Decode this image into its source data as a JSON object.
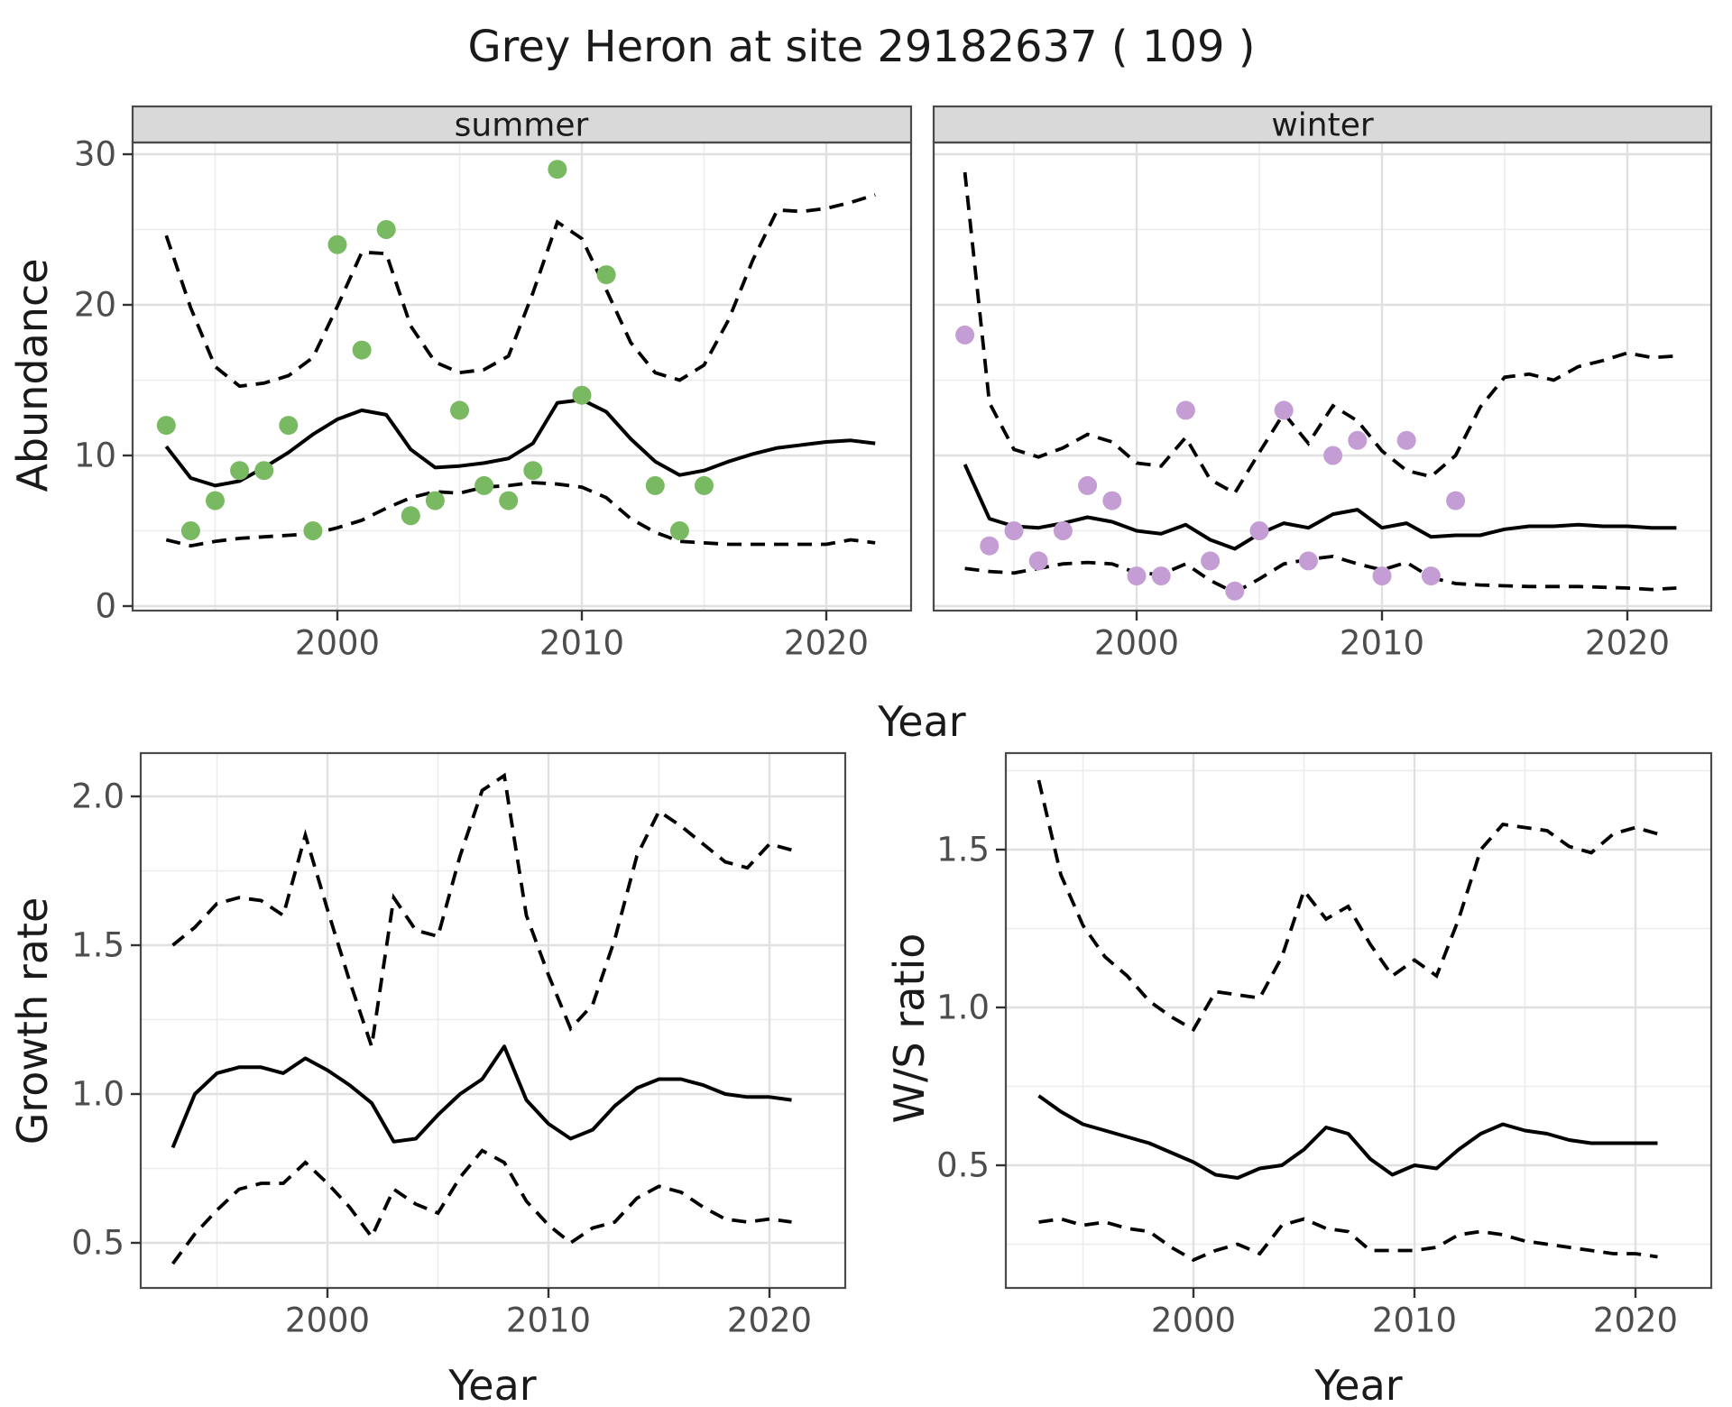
{
  "title": "Grey Heron at site 29182637 ( 109 )",
  "colors": {
    "summer_points": "#79b961",
    "winter_points": "#c49dd4",
    "line": "#000000",
    "grid_major": "#e0e0e0",
    "grid_minor": "#ececec",
    "strip_bg": "#d9d9d9",
    "panel_border": "#4a4a4a",
    "tick_mark": "#333333",
    "tick_text": "#4d4d4d",
    "text": "#1a1a1a",
    "panel_bg": "#ffffff"
  },
  "chart_data": [
    {
      "id": "abundance_summer",
      "type": "scatter+line",
      "facet_label": "summer",
      "xlabel": "Year",
      "ylabel": "Abundance",
      "x_ticks": [
        2000,
        2010,
        2020
      ],
      "x_minor": [
        1995,
        2005,
        2015
      ],
      "y_ticks": [
        0,
        10,
        20,
        30
      ],
      "y_minor": [
        5,
        15,
        25
      ],
      "ylim": [
        0,
        31
      ],
      "xlim": [
        1992.6,
        2023
      ],
      "points": [
        [
          1993,
          12
        ],
        [
          1994,
          5
        ],
        [
          1995,
          7
        ],
        [
          1996,
          9
        ],
        [
          1997,
          9
        ],
        [
          1998,
          12
        ],
        [
          1999,
          5
        ],
        [
          2000,
          24
        ],
        [
          2001,
          17
        ],
        [
          2002,
          25
        ],
        [
          2003,
          6
        ],
        [
          2004,
          7
        ],
        [
          2005,
          13
        ],
        [
          2006,
          8
        ],
        [
          2007,
          7
        ],
        [
          2008,
          9
        ],
        [
          2009,
          29
        ],
        [
          2010,
          14
        ],
        [
          2011,
          22
        ],
        [
          2013,
          8
        ],
        [
          2014,
          5
        ],
        [
          2015,
          8
        ]
      ],
      "line_years": [
        1993,
        1994,
        1995,
        1996,
        1997,
        1998,
        1999,
        2000,
        2001,
        2002,
        2003,
        2004,
        2005,
        2006,
        2007,
        2008,
        2009,
        2010,
        2011,
        2012,
        2013,
        2014,
        2015,
        2016,
        2017,
        2018,
        2019,
        2020,
        2021,
        2022
      ],
      "median": [
        10.6,
        8.5,
        8.0,
        8.3,
        9.2,
        10.2,
        11.4,
        12.4,
        13.0,
        12.7,
        10.4,
        9.2,
        9.3,
        9.5,
        9.8,
        10.8,
        13.5,
        13.7,
        12.9,
        11.1,
        9.6,
        8.7,
        9.0,
        9.6,
        10.1,
        10.5,
        10.7,
        10.9,
        11.0,
        10.8
      ],
      "ci_upper": [
        24.6,
        19.8,
        15.9,
        14.6,
        14.8,
        15.3,
        16.5,
        19.9,
        23.5,
        23.4,
        18.6,
        16.2,
        15.5,
        15.7,
        16.6,
        20.8,
        25.5,
        24.4,
        21.0,
        17.5,
        15.5,
        15.0,
        16.0,
        19.0,
        23.0,
        26.3,
        26.2,
        26.4,
        26.8,
        27.3
      ],
      "ci_lower": [
        4.4,
        4.0,
        4.3,
        4.5,
        4.6,
        4.7,
        4.8,
        5.2,
        5.7,
        6.5,
        7.2,
        7.6,
        7.5,
        7.9,
        8.0,
        8.2,
        8.1,
        7.9,
        7.2,
        5.8,
        4.9,
        4.3,
        4.2,
        4.1,
        4.1,
        4.1,
        4.1,
        4.1,
        4.4,
        4.2
      ]
    },
    {
      "id": "abundance_winter",
      "type": "scatter+line",
      "facet_label": "winter",
      "xlabel": "Year",
      "ylabel": "Abundance",
      "x_ticks": [
        2000,
        2010,
        2020
      ],
      "x_minor": [
        1995,
        2005,
        2015
      ],
      "y_ticks": [
        0,
        10,
        20,
        30
      ],
      "y_minor": [
        5,
        15,
        25
      ],
      "ylim": [
        0,
        31
      ],
      "xlim": [
        1992.6,
        2023
      ],
      "points": [
        [
          1993,
          18
        ],
        [
          1994,
          4
        ],
        [
          1995,
          5
        ],
        [
          1996,
          3
        ],
        [
          1997,
          5
        ],
        [
          1998,
          8
        ],
        [
          1999,
          7
        ],
        [
          2000,
          2
        ],
        [
          2001,
          2
        ],
        [
          2002,
          13
        ],
        [
          2003,
          3
        ],
        [
          2004,
          1
        ],
        [
          2005,
          5
        ],
        [
          2006,
          13
        ],
        [
          2007,
          3
        ],
        [
          2008,
          10
        ],
        [
          2009,
          11
        ],
        [
          2010,
          2
        ],
        [
          2011,
          11
        ],
        [
          2012,
          2
        ],
        [
          2013,
          7
        ]
      ],
      "line_years": [
        1993,
        1994,
        1995,
        1996,
        1997,
        1998,
        1999,
        2000,
        2001,
        2002,
        2003,
        2004,
        2005,
        2006,
        2007,
        2008,
        2009,
        2010,
        2011,
        2012,
        2013,
        2014,
        2015,
        2016,
        2017,
        2018,
        2019,
        2020,
        2021,
        2022
      ],
      "median": [
        9.4,
        5.8,
        5.3,
        5.2,
        5.5,
        5.9,
        5.6,
        5.0,
        4.8,
        5.4,
        4.4,
        3.8,
        4.8,
        5.5,
        5.2,
        6.1,
        6.4,
        5.2,
        5.5,
        4.6,
        4.7,
        4.7,
        5.1,
        5.3,
        5.3,
        5.4,
        5.3,
        5.3,
        5.2,
        5.2
      ],
      "ci_upper": [
        28.8,
        13.5,
        10.4,
        9.9,
        10.5,
        11.4,
        10.9,
        9.5,
        9.3,
        11.2,
        8.4,
        7.5,
        10.2,
        12.8,
        10.8,
        13.3,
        12.3,
        10.3,
        9.0,
        8.6,
        10.0,
        13.2,
        15.2,
        15.4,
        15.0,
        15.9,
        16.3,
        16.8,
        16.5,
        16.6
      ],
      "ci_lower": [
        2.5,
        2.3,
        2.2,
        2.5,
        2.8,
        2.9,
        2.8,
        2.2,
        2.1,
        2.8,
        1.7,
        0.9,
        1.8,
        2.8,
        3.1,
        3.3,
        2.8,
        2.4,
        2.9,
        1.9,
        1.5,
        1.4,
        1.35,
        1.3,
        1.3,
        1.3,
        1.25,
        1.2,
        1.1,
        1.2
      ]
    },
    {
      "id": "growth_rate",
      "type": "line",
      "facet_label": "",
      "xlabel": "Year",
      "ylabel": "Growth rate",
      "x_ticks": [
        2000,
        2010,
        2020
      ],
      "x_minor": [
        1995,
        2005,
        2015
      ],
      "y_ticks": [
        0.5,
        1.0,
        1.5,
        2.0
      ],
      "y_minor": [
        0.75,
        1.25,
        1.75
      ],
      "ylim": [
        0.35,
        2.14
      ],
      "xlim": [
        1991.5,
        2024
      ],
      "points": [],
      "line_years": [
        1993,
        1994,
        1995,
        1996,
        1997,
        1998,
        1999,
        2000,
        2001,
        2002,
        2003,
        2004,
        2005,
        2006,
        2007,
        2008,
        2009,
        2010,
        2011,
        2012,
        2013,
        2014,
        2015,
        2016,
        2017,
        2018,
        2019,
        2020,
        2021
      ],
      "median": [
        0.82,
        1.0,
        1.07,
        1.09,
        1.09,
        1.07,
        1.12,
        1.08,
        1.03,
        0.97,
        0.84,
        0.85,
        0.93,
        1.0,
        1.05,
        1.16,
        0.98,
        0.9,
        0.85,
        0.88,
        0.96,
        1.02,
        1.05,
        1.05,
        1.03,
        1.0,
        0.99,
        0.99,
        0.98
      ],
      "ci_upper": [
        1.5,
        1.56,
        1.64,
        1.66,
        1.65,
        1.6,
        1.87,
        1.62,
        1.38,
        1.16,
        1.66,
        1.55,
        1.53,
        1.8,
        2.02,
        2.07,
        1.6,
        1.4,
        1.22,
        1.3,
        1.52,
        1.8,
        1.95,
        1.9,
        1.84,
        1.78,
        1.76,
        1.84,
        1.82
      ],
      "ci_lower": [
        0.43,
        0.53,
        0.61,
        0.68,
        0.7,
        0.7,
        0.77,
        0.7,
        0.62,
        0.52,
        0.68,
        0.63,
        0.6,
        0.72,
        0.81,
        0.77,
        0.64,
        0.56,
        0.5,
        0.55,
        0.57,
        0.65,
        0.69,
        0.67,
        0.62,
        0.58,
        0.57,
        0.58,
        0.57
      ]
    },
    {
      "id": "ws_ratio",
      "type": "line",
      "facet_label": "",
      "xlabel": "Year",
      "ylabel": "W/S ratio",
      "x_ticks": [
        2000,
        2010,
        2020
      ],
      "x_minor": [
        1995,
        2005,
        2015
      ],
      "y_ticks": [
        0.5,
        1.0,
        1.5
      ],
      "y_minor": [
        0.25,
        0.75,
        1.25,
        1.75
      ],
      "ylim": [
        0.11,
        1.8
      ],
      "xlim": [
        1991.5,
        2024
      ],
      "points": [],
      "line_years": [
        1993,
        1994,
        1995,
        1996,
        1997,
        1998,
        1999,
        2000,
        2001,
        2002,
        2003,
        2004,
        2005,
        2006,
        2007,
        2008,
        2009,
        2010,
        2011,
        2012,
        2013,
        2014,
        2015,
        2016,
        2017,
        2018,
        2019,
        2020,
        2021
      ],
      "median": [
        0.72,
        0.67,
        0.63,
        0.61,
        0.59,
        0.57,
        0.54,
        0.51,
        0.47,
        0.46,
        0.49,
        0.5,
        0.55,
        0.62,
        0.6,
        0.52,
        0.47,
        0.5,
        0.49,
        0.55,
        0.6,
        0.63,
        0.61,
        0.6,
        0.58,
        0.57,
        0.57,
        0.57,
        0.57
      ],
      "ci_upper": [
        1.72,
        1.42,
        1.26,
        1.16,
        1.1,
        1.02,
        0.97,
        0.93,
        1.05,
        1.04,
        1.03,
        1.16,
        1.37,
        1.28,
        1.32,
        1.2,
        1.1,
        1.15,
        1.1,
        1.28,
        1.5,
        1.58,
        1.57,
        1.56,
        1.51,
        1.49,
        1.55,
        1.57,
        1.55
      ],
      "ci_lower": [
        0.32,
        0.33,
        0.31,
        0.32,
        0.3,
        0.29,
        0.24,
        0.2,
        0.23,
        0.25,
        0.22,
        0.31,
        0.33,
        0.3,
        0.29,
        0.23,
        0.23,
        0.23,
        0.24,
        0.28,
        0.29,
        0.28,
        0.26,
        0.25,
        0.24,
        0.23,
        0.22,
        0.22,
        0.21
      ]
    }
  ]
}
